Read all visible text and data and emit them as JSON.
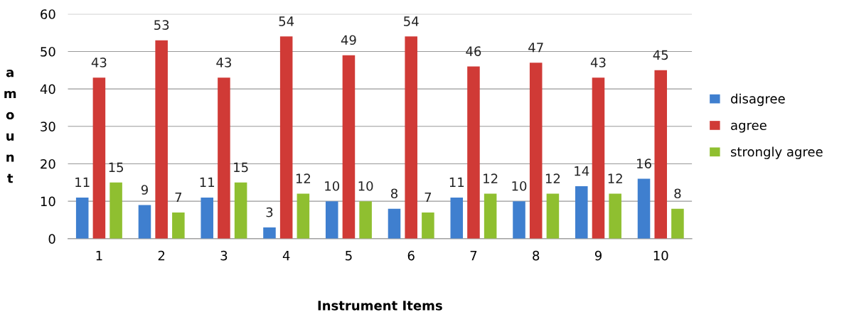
{
  "chart_data": {
    "type": "bar",
    "xlabel": "Instrument Items",
    "ylabel": "amount",
    "categories": [
      "1",
      "2",
      "3",
      "4",
      "5",
      "6",
      "7",
      "8",
      "9",
      "10"
    ],
    "series": [
      {
        "name": "disagree",
        "color": "#3f7fcf",
        "values": [
          11,
          9,
          11,
          3,
          10,
          8,
          11,
          10,
          14,
          16
        ]
      },
      {
        "name": "agree",
        "color": "#d03a36",
        "values": [
          43,
          53,
          43,
          54,
          49,
          54,
          46,
          47,
          43,
          45
        ]
      },
      {
        "name": "strongly agree",
        "color": "#8fbf30",
        "values": [
          15,
          7,
          15,
          12,
          10,
          7,
          12,
          12,
          12,
          8
        ]
      }
    ],
    "ylim": [
      0,
      60
    ],
    "yticks": [
      0,
      10,
      20,
      30,
      40,
      50,
      60
    ],
    "grid": "y",
    "legend": "right",
    "data_labels": true
  }
}
